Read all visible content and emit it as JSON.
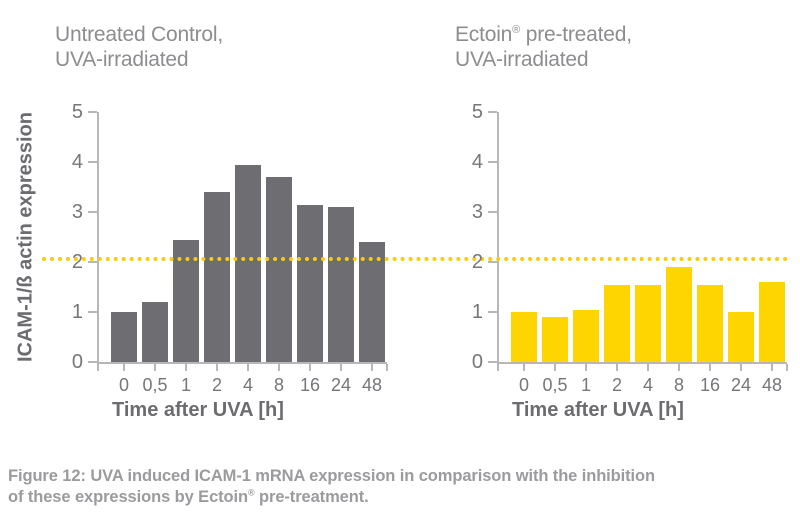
{
  "figure": {
    "caption": {
      "line1": "Figure 12: UVA induced ICAM-1 mRNA expression in comparison with the inhibition",
      "line2_pre": "of these expressions by Ectoin",
      "line2_sup": "®",
      "line2_post": " pre-treatment."
    }
  },
  "threshold_line": {
    "value": 2.07,
    "color": "#fbce00",
    "style": "dotted"
  },
  "chart_data": [
    {
      "type": "bar",
      "title": "Untreated Control, UVA-irradiated",
      "title_lines": {
        "l1": "Untreated Control,",
        "l2": "UVA-irradiated"
      },
      "categories": [
        "0",
        "0,5",
        "1",
        "2",
        "4",
        "8",
        "16",
        "24",
        "48"
      ],
      "values": [
        1.0,
        1.2,
        2.45,
        3.4,
        3.95,
        3.7,
        3.15,
        3.1,
        2.4
      ],
      "xlabel": "Time after UVA [h]",
      "ylabel": "ICAM-1/ß actin expression",
      "ylim": [
        0,
        5
      ],
      "yticks": [
        0,
        1,
        2,
        3,
        4,
        5
      ],
      "grid": false,
      "legend": "none",
      "bar_color": "#6d6d72",
      "annotation": "dotted threshold line at y≈2.07 spanning both charts"
    },
    {
      "type": "bar",
      "title": "Ectoin® pre-treated, UVA-irradiated",
      "title_lines": {
        "l1_pre": "Ectoin",
        "l1_sup": "®",
        "l1_post": " pre-treated,",
        "l2": "UVA-irradiated"
      },
      "categories": [
        "0",
        "0,5",
        "1",
        "2",
        "4",
        "8",
        "16",
        "24",
        "48"
      ],
      "values": [
        1.0,
        0.9,
        1.05,
        1.55,
        1.55,
        1.9,
        1.55,
        1.0,
        1.6
      ],
      "xlabel": "Time after UVA [h]",
      "ylabel": "",
      "ylim": [
        0,
        5
      ],
      "yticks": [
        0,
        1,
        2,
        3,
        4,
        5
      ],
      "grid": false,
      "legend": "none",
      "bar_color": "#ffd500",
      "annotation": "dotted threshold line at y≈2.07 spanning both charts"
    }
  ]
}
